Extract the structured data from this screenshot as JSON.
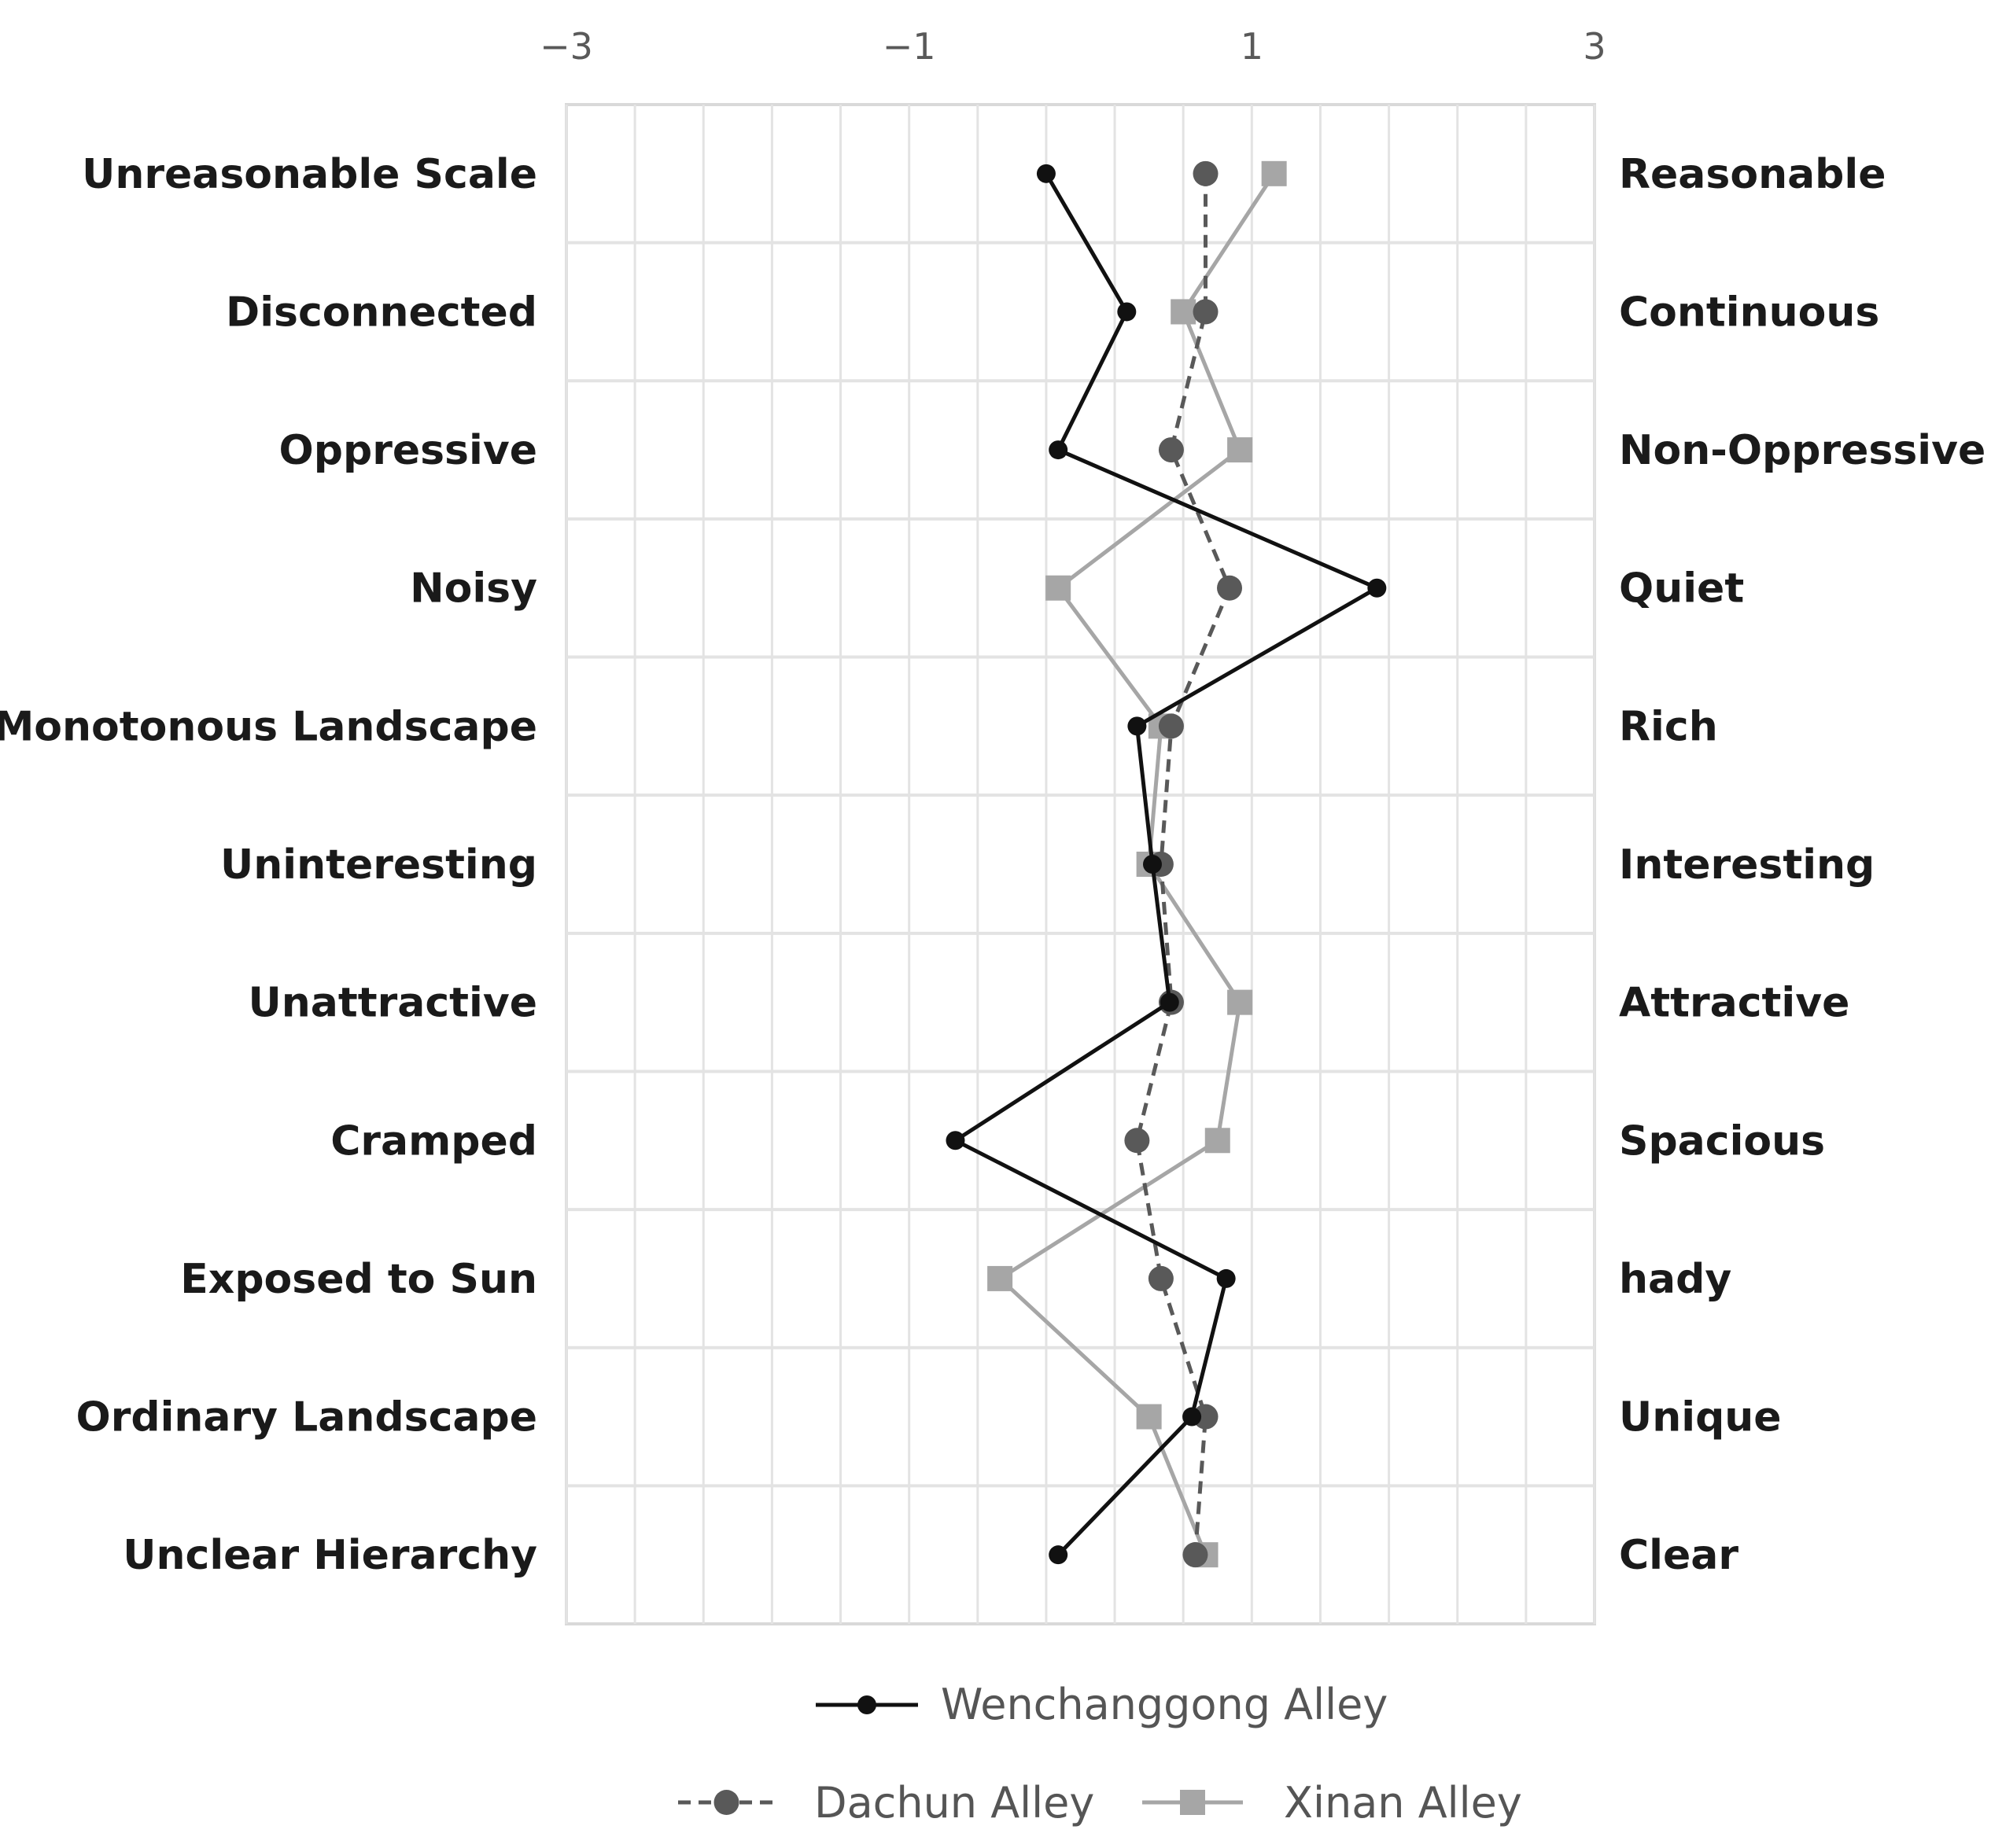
{
  "chart_data": {
    "type": "line",
    "orientation": "vertical-semantic-differential",
    "xlim": [
      -3,
      3
    ],
    "x_ticks": [
      "−3",
      "−1",
      "1",
      "3"
    ],
    "x_tick_values": [
      -3,
      -1,
      1,
      3
    ],
    "grid": true,
    "legend_position": "bottom",
    "left_labels": [
      "Unreasonable Scale",
      "Disconnected",
      "Oppressive",
      "Noisy",
      "Monotonous Landscape",
      "Uninteresting",
      "Unattractive",
      "Cramped",
      "Exposed to Sun",
      "Ordinary Landscape",
      "Unclear Hierarchy"
    ],
    "right_labels": [
      "Reasonable",
      "Continuous",
      "Non-Oppressive",
      "Quiet",
      "Rich",
      "Interesting",
      "Attractive",
      "Spacious",
      "hady",
      "Unique",
      "Clear"
    ],
    "series": [
      {
        "name": "Wenchanggong Alley",
        "style": "solid",
        "marker": "circle",
        "color": "#111111",
        "values": [
          -0.2,
          0.27,
          -0.13,
          1.73,
          0.33,
          0.42,
          0.52,
          -0.73,
          0.85,
          0.65,
          -0.13
        ]
      },
      {
        "name": "Dachun Alley",
        "style": "dashed",
        "marker": "circle",
        "color": "#595959",
        "values": [
          0.73,
          0.73,
          0.53,
          0.87,
          0.53,
          0.47,
          0.53,
          0.33,
          0.47,
          0.73,
          0.67
        ]
      },
      {
        "name": "Xinan Alley",
        "style": "solid",
        "marker": "square",
        "color": "#a6a6a6",
        "values": [
          1.13,
          0.6,
          0.93,
          -0.13,
          0.47,
          0.4,
          0.93,
          0.8,
          -0.47,
          0.4,
          0.73
        ]
      }
    ]
  }
}
